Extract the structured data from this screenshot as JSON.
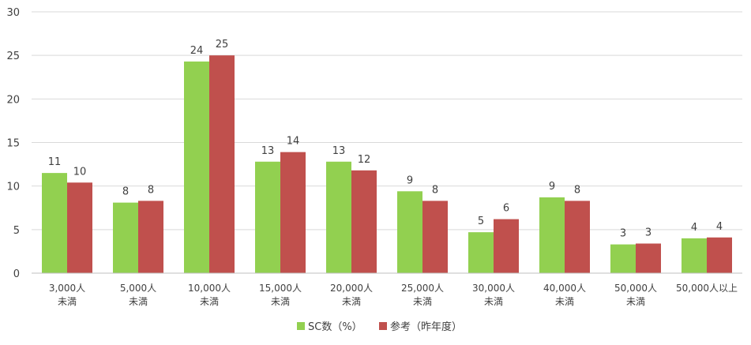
{
  "chart_data": {
    "type": "bar",
    "categories": [
      [
        "3,000人",
        "未満"
      ],
      [
        "5,000人",
        "未満"
      ],
      [
        "10,000人",
        "未満"
      ],
      [
        "15,000人",
        "未満"
      ],
      [
        "20,000人",
        "未満"
      ],
      [
        "25,000人",
        "未満"
      ],
      [
        "30,000人",
        "未満"
      ],
      [
        "40,000人",
        "未満"
      ],
      [
        "50,000人",
        "未満"
      ],
      [
        "50,000人以上"
      ]
    ],
    "series": [
      {
        "name": "SC数（%）",
        "color": "#92d050",
        "values": [
          11.5,
          8.1,
          24.3,
          12.8,
          12.8,
          9.4,
          4.7,
          8.7,
          3.3,
          4.0
        ],
        "labels": [
          "11",
          "8",
          "24",
          "13",
          "13",
          "9",
          "5",
          "9",
          "3",
          "4"
        ]
      },
      {
        "name": "参考（昨年度）",
        "color": "#c0504d",
        "values": [
          10.4,
          8.3,
          25.0,
          13.9,
          11.8,
          8.3,
          6.2,
          8.3,
          3.4,
          4.1
        ],
        "labels": [
          "10",
          "8",
          "25",
          "14",
          "12",
          "8",
          "6",
          "8",
          "3",
          "4"
        ]
      }
    ],
    "yticks": [
      "0",
      "5",
      "10",
      "15",
      "20",
      "25",
      "30"
    ],
    "ylim": [
      0,
      30
    ],
    "grid": true,
    "legend": "bottom"
  }
}
